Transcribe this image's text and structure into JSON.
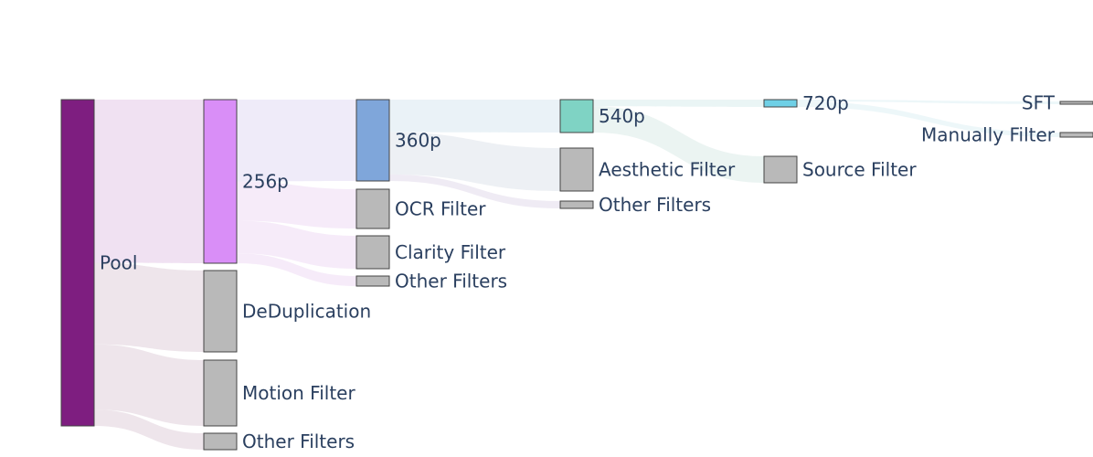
{
  "diagram": {
    "type": "sankey",
    "nodes": [
      {
        "id": "pool",
        "label": "Pool",
        "color": "#7e1e80"
      },
      {
        "id": "p256",
        "label": "256p",
        "color": "#d98ef7"
      },
      {
        "id": "dedup",
        "label": "DeDuplication",
        "color": "#b9b9b9"
      },
      {
        "id": "motion",
        "label": "Motion Filter",
        "color": "#b9b9b9"
      },
      {
        "id": "other1",
        "label": "Other Filters",
        "color": "#b9b9b9"
      },
      {
        "id": "p360",
        "label": "360p",
        "color": "#7fa6da"
      },
      {
        "id": "ocr",
        "label": "OCR Filter",
        "color": "#b9b9b9"
      },
      {
        "id": "clarity",
        "label": "Clarity Filter",
        "color": "#b9b9b9"
      },
      {
        "id": "other2",
        "label": "Other Filters",
        "color": "#b9b9b9"
      },
      {
        "id": "p540",
        "label": "540p",
        "color": "#7fd3c4"
      },
      {
        "id": "aesthetic",
        "label": "Aesthetic Filter",
        "color": "#b9b9b9"
      },
      {
        "id": "other3",
        "label": "Other Filters",
        "color": "#b9b9b9"
      },
      {
        "id": "p720",
        "label": "720p",
        "color": "#6fd0e6"
      },
      {
        "id": "source",
        "label": "Source Filter",
        "color": "#b9b9b9"
      },
      {
        "id": "sft",
        "label": "SFT",
        "color": "#b9b9b9"
      },
      {
        "id": "manual",
        "label": "Manually Filter",
        "color": "#b9b9b9"
      }
    ],
    "links": [
      {
        "source": "pool",
        "target": "p256",
        "value": 100,
        "color": "#eddcf0"
      },
      {
        "source": "pool",
        "target": "dedup",
        "value": 50,
        "color": "#ebe0e8"
      },
      {
        "source": "pool",
        "target": "motion",
        "value": 40,
        "color": "#ebe0e8"
      },
      {
        "source": "pool",
        "target": "other1",
        "value": 10,
        "color": "#ebe0e8"
      },
      {
        "source": "p256",
        "target": "p360",
        "value": 50,
        "color": "#ece8f8"
      },
      {
        "source": "p256",
        "target": "ocr",
        "value": 24,
        "color": "#f4e8f8"
      },
      {
        "source": "p256",
        "target": "clarity",
        "value": 20,
        "color": "#f4e8f8"
      },
      {
        "source": "p256",
        "target": "other2",
        "value": 6,
        "color": "#f4e8f8"
      },
      {
        "source": "p360",
        "target": "p540",
        "value": 20,
        "color": "#e6f0f6"
      },
      {
        "source": "p360",
        "target": "aesthetic",
        "value": 26,
        "color": "#eaedf2"
      },
      {
        "source": "p360",
        "target": "other3",
        "value": 4,
        "color": "#ece8f2"
      },
      {
        "source": "p540",
        "target": "p720",
        "value": 4,
        "color": "#e6f3f3"
      },
      {
        "source": "p540",
        "target": "source",
        "value": 16,
        "color": "#e8f2f0"
      },
      {
        "source": "p720",
        "target": "sft",
        "value": 1,
        "color": "#eaf6f8"
      },
      {
        "source": "p720",
        "target": "manual",
        "value": 3,
        "color": "#eaf6f8"
      }
    ]
  }
}
